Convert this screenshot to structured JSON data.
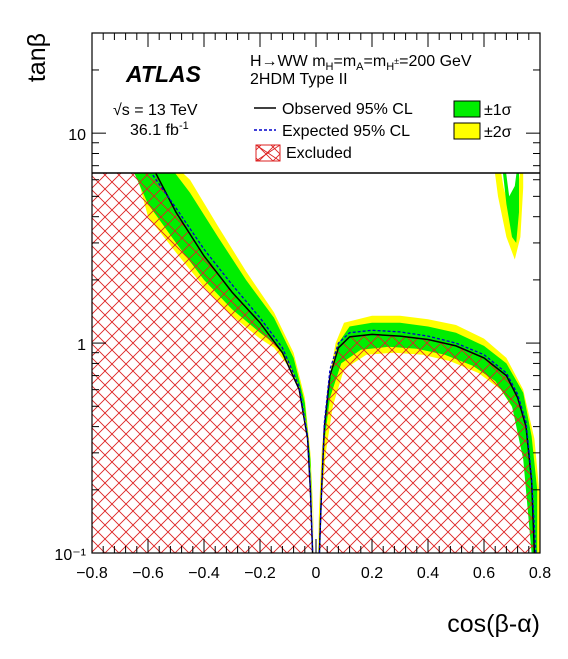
{
  "chart_data": {
    "type": "area",
    "experiment": "ATLAS",
    "process_label": "H→WW",
    "mass_condition": "m_H=m_A=m_H±=200 GeV",
    "mass_condition_value": "=200 GeV",
    "model": "2HDM Type II",
    "energy": "√s = 13 TeV",
    "luminosity": "36.1 fb",
    "luminosity_exp": "-1",
    "xlabel": "cos(β-α)",
    "ylabel": "tanβ",
    "xlim": [
      -0.8,
      0.8
    ],
    "ylim": [
      0.1,
      30
    ],
    "y_scale": "log",
    "x_ticks": [
      "−0.8",
      "−0.6",
      "−0.4",
      "−0.2",
      "0",
      "0.2",
      "0.4",
      "0.6",
      "0.8"
    ],
    "x_tick_values": [
      -0.8,
      -0.6,
      -0.4,
      -0.2,
      0,
      0.2,
      0.4,
      0.6,
      0.8
    ],
    "y_ticks": [
      "10⁻¹",
      "1",
      "10"
    ],
    "y_tick_values": [
      0.1,
      1,
      10
    ],
    "legend": {
      "observed": "Observed 95% CL",
      "expected": "Expected 95% CL",
      "band1": "±1σ",
      "band2": "±2σ",
      "excluded": "Excluded"
    },
    "colors": {
      "band1": "#00ee00",
      "band2": "#ffff00",
      "observed": "#000000",
      "expected": "#0000cc",
      "excluded_hatch": "#dd2222"
    },
    "series": [
      {
        "name": "Observed 95% CL",
        "segments": [
          {
            "x": [
              -0.72,
              -0.6,
              -0.5,
              -0.4,
              -0.3,
              -0.2,
              -0.12,
              -0.06,
              -0.03,
              -0.02,
              -0.015,
              -0.012
            ],
            "y": [
              8.0,
              7.6,
              4.2,
              2.6,
              1.75,
              1.25,
              0.9,
              0.6,
              0.35,
              0.2,
              0.13,
              0.1
            ]
          },
          {
            "x": [
              0.012,
              0.015,
              0.02,
              0.03,
              0.05,
              0.08,
              0.12,
              0.2,
              0.3,
              0.4,
              0.5,
              0.6,
              0.68,
              0.72,
              0.75,
              0.77,
              0.78
            ],
            "y": [
              0.1,
              0.13,
              0.2,
              0.4,
              0.7,
              0.95,
              1.07,
              1.1,
              1.08,
              1.04,
              0.97,
              0.85,
              0.7,
              0.55,
              0.4,
              0.22,
              0.1
            ]
          }
        ]
      },
      {
        "name": "Expected 95% CL",
        "segments": [
          {
            "x": [
              -0.7,
              -0.6,
              -0.5,
              -0.4,
              -0.3,
              -0.2,
              -0.12,
              -0.06,
              -0.03,
              -0.02,
              -0.015,
              -0.012
            ],
            "y": [
              8.0,
              6.8,
              4.4,
              2.8,
              1.9,
              1.32,
              0.95,
              0.62,
              0.36,
              0.2,
              0.13,
              0.1
            ]
          },
          {
            "x": [
              0.012,
              0.015,
              0.02,
              0.03,
              0.05,
              0.08,
              0.12,
              0.2,
              0.3,
              0.4,
              0.5,
              0.6,
              0.68,
              0.72,
              0.75,
              0.77,
              0.785
            ],
            "y": [
              0.1,
              0.13,
              0.2,
              0.42,
              0.75,
              1.0,
              1.12,
              1.15,
              1.13,
              1.08,
              1.0,
              0.88,
              0.72,
              0.57,
              0.42,
              0.23,
              0.1
            ]
          }
        ]
      }
    ],
    "bands": {
      "two_sigma": [
        {
          "x": [
            -0.68,
            -0.55,
            -0.45,
            -0.35,
            -0.25,
            -0.15,
            -0.08,
            -0.04,
            -0.02,
            -0.01,
            -0.008,
            -0.008,
            -0.012,
            -0.02,
            -0.035,
            -0.06,
            -0.1,
            -0.15,
            -0.2,
            -0.3,
            -0.4,
            -0.5,
            -0.6,
            -0.66
          ],
          "y": [
            8.0,
            8.0,
            6.0,
            3.6,
            2.2,
            1.4,
            0.9,
            0.55,
            0.3,
            0.16,
            0.1,
            0.1,
            0.16,
            0.25,
            0.4,
            0.6,
            0.78,
            0.95,
            1.05,
            1.35,
            1.85,
            2.7,
            4.0,
            8.0
          ]
        },
        {
          "x": [
            0.008,
            0.01,
            0.02,
            0.04,
            0.07,
            0.1,
            0.2,
            0.3,
            0.4,
            0.5,
            0.6,
            0.68,
            0.74,
            0.78,
            0.8,
            0.8,
            0.78,
            0.76,
            0.72,
            0.66,
            0.58,
            0.48,
            0.38,
            0.28,
            0.18,
            0.1,
            0.06,
            0.035,
            0.02,
            0.012
          ],
          "y": [
            0.1,
            0.15,
            0.3,
            0.6,
            1.0,
            1.25,
            1.35,
            1.35,
            1.3,
            1.22,
            1.05,
            0.85,
            0.6,
            0.35,
            0.18,
            0.1,
            0.1,
            0.25,
            0.45,
            0.6,
            0.72,
            0.82,
            0.88,
            0.9,
            0.88,
            0.75,
            0.5,
            0.3,
            0.18,
            0.1
          ]
        },
        {
          "x": [
            0.63,
            0.65,
            0.68,
            0.71,
            0.73,
            0.74,
            0.74,
            0.72,
            0.7,
            0.67,
            0.65
          ],
          "y": [
            8.0,
            5.0,
            3.2,
            2.5,
            3.2,
            5.5,
            8.0,
            5.5,
            4.0,
            5.5,
            8.0
          ]
        }
      ],
      "one_sigma": [
        {
          "x": [
            -0.66,
            -0.55,
            -0.45,
            -0.35,
            -0.25,
            -0.15,
            -0.08,
            -0.04,
            -0.02,
            -0.012,
            -0.01,
            -0.012,
            -0.02,
            -0.035,
            -0.06,
            -0.1,
            -0.15,
            -0.2,
            -0.3,
            -0.4,
            -0.5,
            -0.6,
            -0.68
          ],
          "y": [
            8.0,
            7.8,
            5.2,
            3.2,
            2.0,
            1.32,
            0.85,
            0.52,
            0.28,
            0.15,
            0.1,
            0.15,
            0.25,
            0.42,
            0.62,
            0.82,
            1.0,
            1.12,
            1.45,
            2.0,
            3.0,
            4.6,
            8.0
          ]
        },
        {
          "x": [
            0.01,
            0.015,
            0.025,
            0.045,
            0.08,
            0.12,
            0.2,
            0.3,
            0.4,
            0.5,
            0.6,
            0.68,
            0.74,
            0.77,
            0.79,
            0.79,
            0.77,
            0.74,
            0.7,
            0.64,
            0.56,
            0.46,
            0.36,
            0.26,
            0.16,
            0.09,
            0.05,
            0.03,
            0.018,
            0.012
          ],
          "y": [
            0.1,
            0.16,
            0.32,
            0.62,
            1.0,
            1.2,
            1.25,
            1.25,
            1.2,
            1.12,
            0.97,
            0.8,
            0.58,
            0.36,
            0.2,
            0.1,
            0.1,
            0.28,
            0.5,
            0.66,
            0.78,
            0.88,
            0.94,
            0.96,
            0.93,
            0.8,
            0.55,
            0.34,
            0.2,
            0.1
          ]
        },
        {
          "x": [
            0.66,
            0.68,
            0.7,
            0.715,
            0.725,
            0.725,
            0.71,
            0.69,
            0.67
          ],
          "y": [
            8.0,
            4.6,
            3.2,
            3.0,
            4.2,
            8.0,
            5.6,
            5.0,
            8.0
          ]
        }
      ]
    },
    "excluded_regions": [
      {
        "x": [
          -0.8,
          -0.72,
          -0.6,
          -0.5,
          -0.4,
          -0.3,
          -0.2,
          -0.12,
          -0.06,
          -0.03,
          -0.02,
          -0.015,
          -0.012,
          -0.8
        ],
        "y": [
          8.0,
          8.0,
          7.6,
          4.2,
          2.6,
          1.75,
          1.25,
          0.9,
          0.6,
          0.35,
          0.2,
          0.13,
          0.1,
          0.1
        ]
      },
      {
        "x": [
          0.012,
          0.015,
          0.02,
          0.03,
          0.05,
          0.08,
          0.12,
          0.2,
          0.3,
          0.4,
          0.5,
          0.6,
          0.68,
          0.72,
          0.75,
          0.77,
          0.78
        ],
        "y": [
          0.1,
          0.13,
          0.2,
          0.4,
          0.7,
          0.95,
          1.07,
          1.1,
          1.08,
          1.04,
          0.97,
          0.85,
          0.7,
          0.55,
          0.4,
          0.22,
          0.1
        ]
      }
    ],
    "legend_box_lower_y": 8.0,
    "grid": false
  }
}
